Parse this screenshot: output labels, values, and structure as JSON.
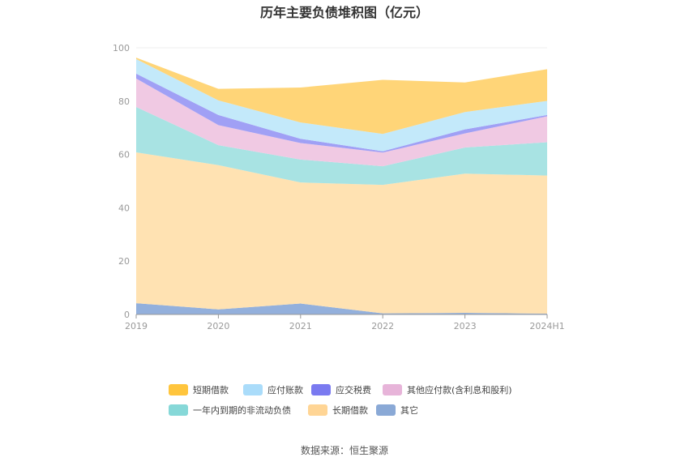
{
  "title": "历年主要负债堆积图（亿元）",
  "source": "数据来源：恒生聚源",
  "chart_data": {
    "type": "area",
    "stacked": true,
    "categories": [
      "2019",
      "2020",
      "2021",
      "2022",
      "2023",
      "2024H1"
    ],
    "ylim": [
      0,
      100
    ],
    "yticks": [
      0,
      20,
      40,
      60,
      80,
      100
    ],
    "grid": true,
    "legend_position": "bottom",
    "series": [
      {
        "name": "其它",
        "color": "#93b0dc",
        "values": [
          4.2,
          1.9,
          4.1,
          0.4,
          0.6,
          0.3
        ]
      },
      {
        "name": "长期借款",
        "color": "#ffe2b2",
        "values": [
          56.6,
          54.1,
          45.4,
          48.2,
          52.2,
          51.8
        ]
      },
      {
        "name": "一年内到期的非流动负债",
        "color": "#a8e3e3",
        "values": [
          17.0,
          7.5,
          8.6,
          7.0,
          9.8,
          12.5
        ]
      },
      {
        "name": "其他应付款(含利息和股利)",
        "color": "#f0c9e3",
        "values": [
          10.7,
          7.5,
          6.2,
          5.1,
          5.3,
          9.7
        ]
      },
      {
        "name": "应交税费",
        "color": "#a0a0f5",
        "values": [
          1.8,
          3.8,
          1.6,
          0.5,
          1.5,
          0.5
        ]
      },
      {
        "name": "应付账款",
        "color": "#c3e9fa",
        "values": [
          5.5,
          5.5,
          6.1,
          6.5,
          6.5,
          5.3
        ]
      },
      {
        "name": "短期借款",
        "color": "#ffd578",
        "values": [
          0.5,
          4.3,
          13.1,
          20.3,
          11.1,
          11.9
        ]
      }
    ]
  },
  "legend": [
    {
      "name": "短期借款",
      "color": "#ffc53d"
    },
    {
      "name": "应付账款",
      "color": "#aadcfa"
    },
    {
      "name": "应交税费",
      "color": "#7a7af0"
    },
    {
      "name": "其他应付款(含利息和股利)",
      "color": "#e7b4d9"
    },
    {
      "name": "一年内到期的非流动负债",
      "color": "#86d8d8"
    },
    {
      "name": "长期借款",
      "color": "#ffd595"
    },
    {
      "name": "其它",
      "color": "#8aa9d6"
    }
  ]
}
